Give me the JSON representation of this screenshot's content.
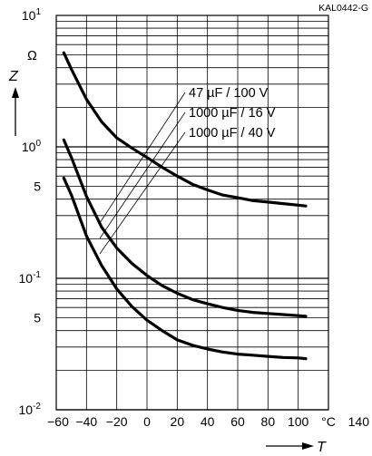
{
  "chart_data": {
    "type": "line",
    "figure_code": "KAL0442-G",
    "ylabel": "Z",
    "yunit": "Ω",
    "xlabel": "T",
    "xunit": "°C",
    "yscale": "log",
    "ylim": [
      0.01,
      10
    ],
    "xlim": [
      -60,
      100
    ],
    "grid": true,
    "x_ticks": [
      "-60",
      "-40",
      "-20",
      "0",
      "20",
      "40",
      "60",
      "80",
      "100",
      "°C",
      "140"
    ],
    "y_ticks": [
      {
        "base": "10",
        "exp": "1"
      },
      {
        "base": "10",
        "exp": "0"
      },
      {
        "base": "5",
        "exp": ""
      },
      {
        "base": "10",
        "exp": "-1"
      },
      {
        "base": "5",
        "exp": ""
      },
      {
        "base": "10",
        "exp": "-2"
      }
    ],
    "annotations": [
      "47 µF / 100 V",
      "1000 µF / 16 V",
      "1000 µF / 40 V"
    ],
    "series": [
      {
        "name": "47 µF / 100 V",
        "x": [
          -55,
          -50,
          -40,
          -30,
          -20,
          -10,
          0,
          10,
          20,
          30,
          40,
          50,
          60,
          70,
          80,
          90,
          100,
          105
        ],
        "y": [
          5.2,
          3.9,
          2.3,
          1.55,
          1.17,
          0.98,
          0.83,
          0.7,
          0.6,
          0.52,
          0.47,
          0.43,
          0.41,
          0.39,
          0.38,
          0.37,
          0.36,
          0.355
        ]
      },
      {
        "name": "1000 µF / 16 V",
        "x": [
          -55,
          -50,
          -40,
          -30,
          -20,
          -10,
          0,
          10,
          20,
          30,
          40,
          50,
          60,
          70,
          80,
          90,
          100,
          105
        ],
        "y": [
          1.13,
          0.83,
          0.42,
          0.245,
          0.17,
          0.13,
          0.105,
          0.088,
          0.077,
          0.069,
          0.064,
          0.06,
          0.057,
          0.055,
          0.054,
          0.053,
          0.052,
          0.0515
        ]
      },
      {
        "name": "1000 µF / 40 V",
        "x": [
          -55,
          -50,
          -40,
          -30,
          -20,
          -10,
          0,
          10,
          20,
          30,
          40,
          50,
          60,
          70,
          80,
          90,
          100,
          105
        ],
        "y": [
          0.58,
          0.43,
          0.21,
          0.125,
          0.083,
          0.061,
          0.048,
          0.04,
          0.034,
          0.031,
          0.029,
          0.0275,
          0.0265,
          0.026,
          0.0255,
          0.025,
          0.0248,
          0.0245
        ]
      }
    ]
  }
}
